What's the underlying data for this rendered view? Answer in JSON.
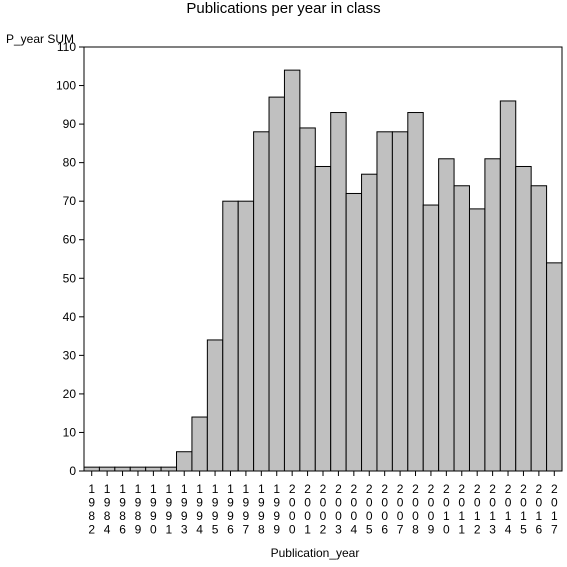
{
  "chart_data": {
    "type": "bar",
    "title": "Publications per year in class",
    "ylabel": "P_year SUM",
    "xlabel": "Publication_year",
    "ylim": [
      0,
      110
    ],
    "yticks": [
      0,
      10,
      20,
      30,
      40,
      50,
      60,
      70,
      80,
      90,
      100,
      110
    ],
    "grid": false,
    "bar_color": "#c0c0c0",
    "categories": [
      "1982",
      "1984",
      "1986",
      "1989",
      "1990",
      "1991",
      "1993",
      "1994",
      "1995",
      "1996",
      "1997",
      "1998",
      "1999",
      "2000",
      "2001",
      "2002",
      "2003",
      "2004",
      "2005",
      "2006",
      "2007",
      "2008",
      "2009",
      "2010",
      "2011",
      "2012",
      "2013",
      "2014",
      "2015",
      "2016",
      "2017"
    ],
    "values": [
      1,
      1,
      1,
      1,
      1,
      1,
      5,
      14,
      34,
      70,
      70,
      88,
      97,
      104,
      89,
      79,
      93,
      72,
      77,
      88,
      88,
      93,
      69,
      81,
      74,
      68,
      81,
      96,
      79,
      74,
      54
    ]
  }
}
